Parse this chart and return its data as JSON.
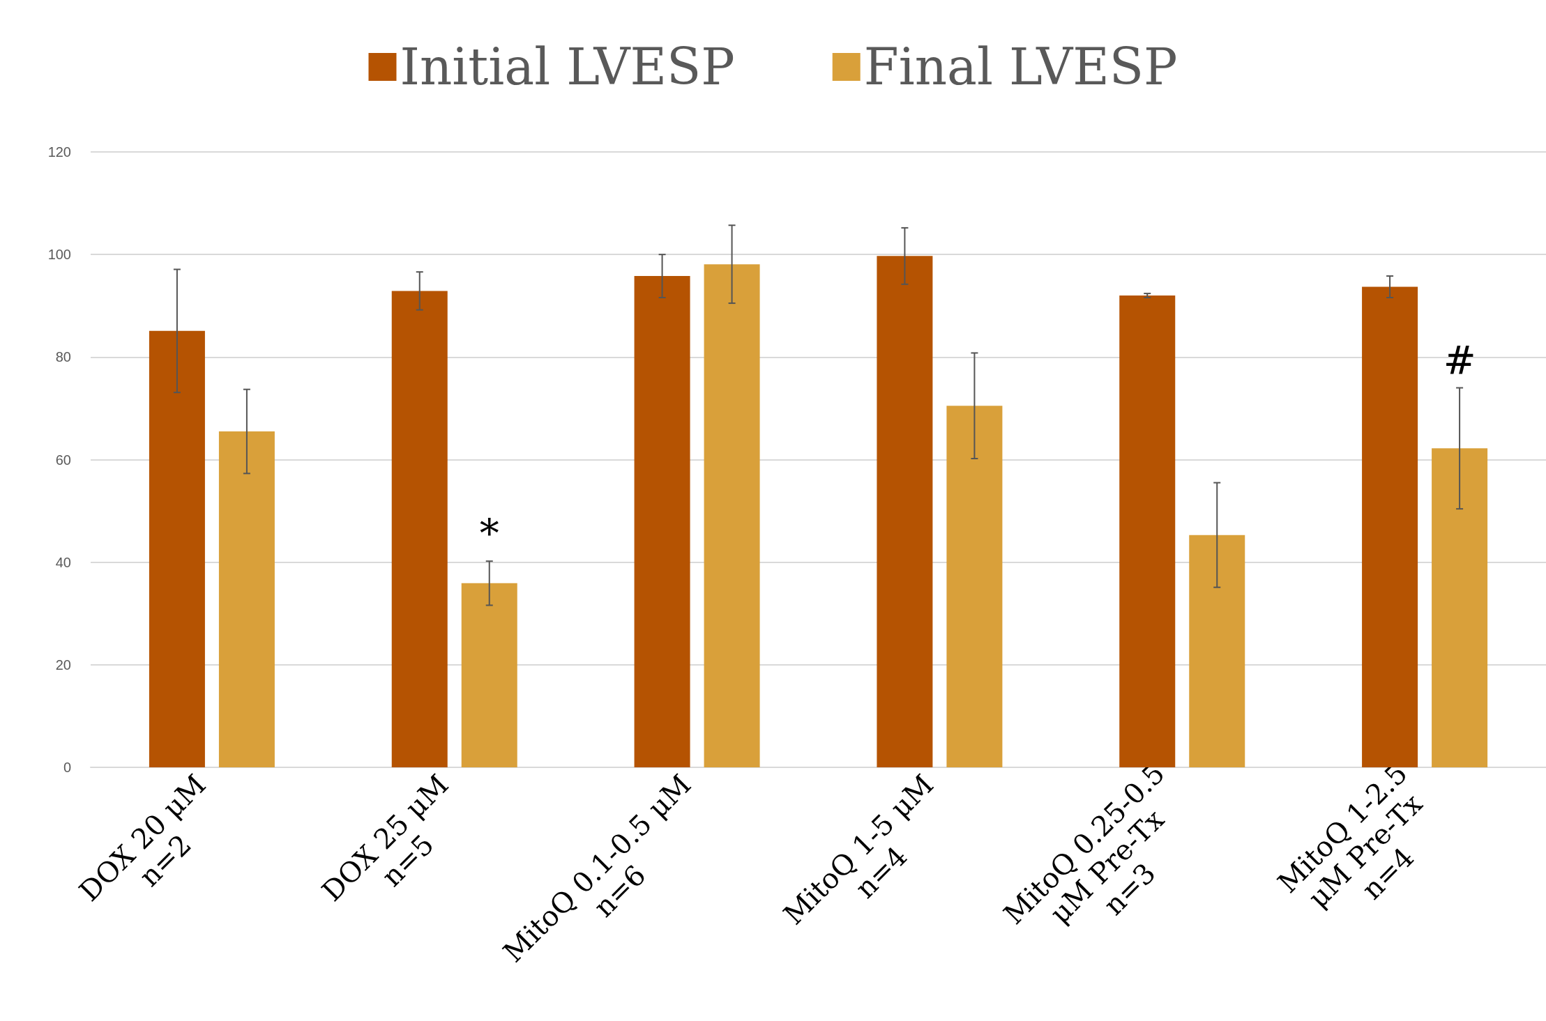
{
  "chart_data": {
    "type": "bar",
    "categories": [
      "DOX 20 μM\nn=2",
      "DOX 25 μM\nn=5",
      "MitoQ 0.1-0.5 μM\nn=6",
      "MitoQ 1-5 μM\nn=4",
      "MitoQ 0.25-0.5\nμM Pre-Tx\nn=3",
      "MitoQ 1-2.5\nμM Pre-Tx\nn=4"
    ],
    "series": [
      {
        "name": "Initial LVESP",
        "color": "#b55302",
        "values": [
          85.1,
          92.9,
          95.8,
          99.7,
          92,
          93.7
        ],
        "errors": [
          12,
          3.7,
          4.2,
          5.5,
          0.4,
          2.1
        ]
      },
      {
        "name": "Final LVESP",
        "color": "#d9a03a",
        "values": [
          65.5,
          35.9,
          98.1,
          70.5,
          45.3,
          62.2
        ],
        "errors": [
          8.2,
          4.3,
          7.6,
          10.3,
          10.2,
          11.8
        ]
      }
    ],
    "ylim": [
      0,
      120
    ],
    "yticks": [
      0,
      20,
      40,
      60,
      80,
      100,
      120
    ],
    "grid": "y",
    "legend": "top",
    "annotations": [
      {
        "text": "*",
        "x": "DOX 25 μM\nn=5",
        "y": 40.2
      },
      {
        "text": "#",
        "x": "MitoQ 1-2.5\nμM Pre-Tx\nn=4",
        "y": 74
      }
    ]
  }
}
